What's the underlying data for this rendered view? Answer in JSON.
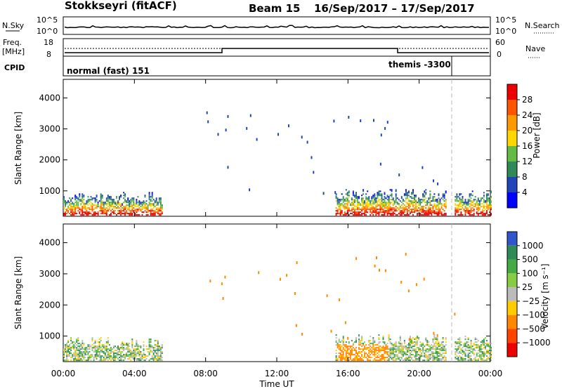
{
  "header": {
    "title": "Stokkseyri (fitACF)",
    "beam": "Beam 15",
    "date_range": "16/Sep/2017 – 17/Sep/2017"
  },
  "panels": {
    "nsky_label": "N.Sky",
    "nsky_ticks": [
      "10^5",
      "10^0"
    ],
    "nsearch_label": "N.Search",
    "nsearch_ticks": [
      "10^5",
      "10^0"
    ],
    "freq_label": "Freq.",
    "freq_unit": "[MHz]",
    "freq_ticks": [
      "18",
      "8"
    ],
    "nave_label": "Nave",
    "nave_ticks": [
      "60",
      "0"
    ],
    "cpid_label": "CPID",
    "cpid_segments": [
      {
        "name": "normal (fast) 151",
        "start_hour": 0,
        "end_hour": 21.9
      },
      {
        "name": "themis -3300",
        "start_hour": 21.9,
        "end_hour": 24
      }
    ]
  },
  "chart_data": [
    {
      "type": "heatmap",
      "name": "power",
      "ylabel": "Slant Range [km]",
      "xlabel": "Time UT",
      "xlim": [
        0,
        24
      ],
      "ylim": [
        180,
        4600
      ],
      "x_ticks": [
        "00:00",
        "04:00",
        "08:00",
        "12:00",
        "16:00",
        "20:00",
        "00:00"
      ],
      "y_ticks": [
        1000,
        2000,
        3000,
        4000
      ],
      "colorbar": {
        "label": "Power [dB]",
        "ticks": [
          "4",
          "8",
          "12",
          "16",
          "20",
          "24",
          "28"
        ],
        "colors": [
          "#0000ff",
          "#2244bb",
          "#2e8b57",
          "#66bb44",
          "#ffd700",
          "#ff9900",
          "#ff5500",
          "#ee0000"
        ]
      },
      "regions": [
        {
          "start_hour": 0.0,
          "end_hour": 5.6,
          "range_min": 200,
          "range_max": 950
        },
        {
          "start_hour": 15.3,
          "end_hour": 21.5,
          "range_min": 200,
          "range_max": 1050
        },
        {
          "start_hour": 22.0,
          "end_hour": 24.0,
          "range_min": 200,
          "range_max": 1000
        }
      ]
    },
    {
      "type": "heatmap",
      "name": "velocity",
      "ylabel": "Slant Range [km]",
      "xlabel": "Time UT",
      "xlim": [
        0,
        24
      ],
      "ylim": [
        180,
        4600
      ],
      "x_ticks": [
        "00:00",
        "04:00",
        "08:00",
        "12:00",
        "16:00",
        "20:00",
        "00:00"
      ],
      "y_ticks": [
        1000,
        2000,
        3000,
        4000
      ],
      "colorbar": {
        "label": "Velocity [m s⁻¹]",
        "ticks": [
          "1000",
          "500",
          "100",
          "25",
          "−25",
          "−100",
          "−500",
          "−1000"
        ],
        "colors": [
          "#3355cc",
          "#2e8b57",
          "#44aa44",
          "#88cc44",
          "#bbbbbb",
          "#ffcc00",
          "#ff8800",
          "#ff4400",
          "#ee0000"
        ]
      },
      "regions": [
        {
          "start_hour": 0.0,
          "end_hour": 5.6,
          "range_min": 200,
          "range_max": 950
        },
        {
          "start_hour": 15.3,
          "end_hour": 21.5,
          "range_min": 200,
          "range_max": 1050
        },
        {
          "start_hour": 22.0,
          "end_hour": 24.0,
          "range_min": 200,
          "range_max": 1000
        }
      ]
    }
  ]
}
